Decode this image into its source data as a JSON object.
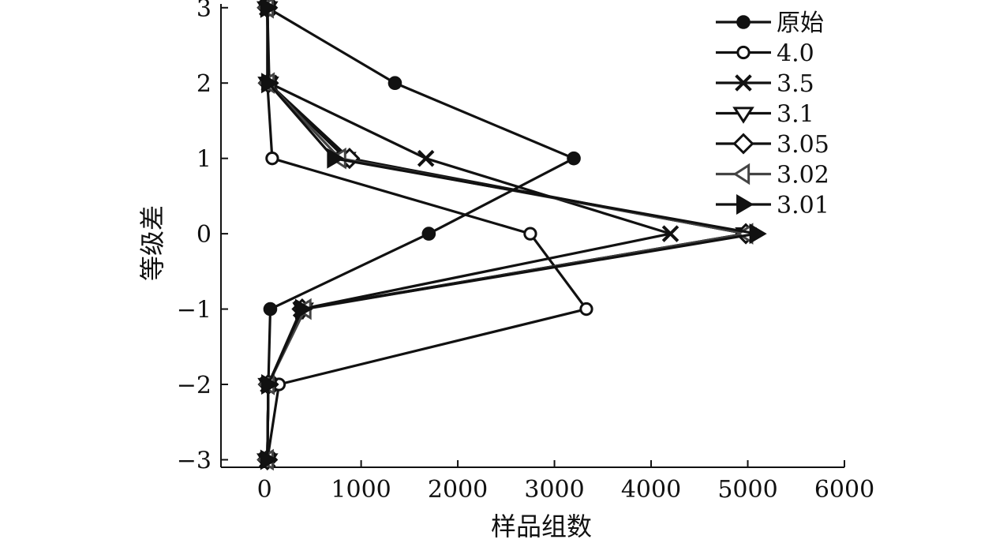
{
  "chart_data": {
    "type": "line",
    "title": "",
    "xlabel": "样品组数",
    "ylabel": "等级差",
    "xlim": [
      -450,
      6000
    ],
    "ylim": [
      -3.1,
      3.05
    ],
    "xticks": [
      0,
      1000,
      2000,
      3000,
      4000,
      5000,
      6000
    ],
    "xtick_labels": [
      "0",
      "1000",
      "2000",
      "3000",
      "4000",
      "5000",
      "6000"
    ],
    "yticks": [
      3,
      2,
      1,
      0,
      -1,
      -2,
      -3
    ],
    "ytick_labels": [
      "3",
      "2",
      "1",
      "0",
      "−1",
      "−2",
      "−3"
    ],
    "grid": false,
    "legend_position": "top-right",
    "y": [
      3,
      2,
      1,
      0,
      -1,
      -2,
      -3
    ],
    "series": [
      {
        "name": "原始",
        "marker": "filled-circle",
        "color": "#111111",
        "x": [
          30,
          1350,
          3200,
          1700,
          60,
          40,
          30
        ]
      },
      {
        "name": "4.0",
        "marker": "open-circle",
        "color": "#111111",
        "x": [
          30,
          30,
          80,
          2750,
          3330,
          150,
          30
        ]
      },
      {
        "name": "3.5",
        "marker": "x",
        "color": "#111111",
        "x": [
          30,
          50,
          1670,
          4200,
          380,
          40,
          30
        ]
      },
      {
        "name": "3.1",
        "marker": "open-triangle-down",
        "color": "#111111",
        "x": [
          30,
          40,
          840,
          4980,
          400,
          40,
          30
        ]
      },
      {
        "name": "3.05",
        "marker": "open-diamond",
        "color": "#111111",
        "x": [
          30,
          40,
          880,
          4980,
          390,
          40,
          30
        ]
      },
      {
        "name": "3.02",
        "marker": "open-triangle-left",
        "color": "#444444",
        "x": [
          30,
          40,
          780,
          4990,
          420,
          40,
          30
        ]
      },
      {
        "name": "3.01",
        "marker": "filled-triangle-right",
        "color": "#111111",
        "x": [
          30,
          40,
          720,
          5090,
          390,
          40,
          30
        ]
      }
    ]
  }
}
